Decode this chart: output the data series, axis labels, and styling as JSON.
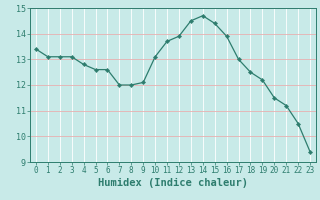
{
  "x": [
    0,
    1,
    2,
    3,
    4,
    5,
    6,
    7,
    8,
    9,
    10,
    11,
    12,
    13,
    14,
    15,
    16,
    17,
    18,
    19,
    20,
    21,
    22,
    23
  ],
  "y": [
    13.4,
    13.1,
    13.1,
    13.1,
    12.8,
    12.6,
    12.6,
    12.0,
    12.0,
    12.1,
    13.1,
    13.7,
    13.9,
    14.5,
    14.7,
    14.4,
    13.9,
    13.0,
    12.5,
    12.2,
    11.5,
    11.2,
    10.5,
    9.4
  ],
  "line_color": "#2e7d6e",
  "marker": "D",
  "marker_size": 2.2,
  "bg_color": "#c8eae8",
  "grid_color": "#ffffff",
  "grid_red_color": "#f0a0a0",
  "xlabel": "Humidex (Indice chaleur)",
  "xlabel_fontsize": 7.5,
  "tick_color": "#2e7d6e",
  "tick_fontsize": 5.5,
  "ytick_fontsize": 6.0,
  "ylim": [
    9,
    15
  ],
  "yticks": [
    9,
    10,
    11,
    12,
    13,
    14,
    15
  ],
  "xlim": [
    -0.5,
    23.5
  ],
  "xticks": [
    0,
    1,
    2,
    3,
    4,
    5,
    6,
    7,
    8,
    9,
    10,
    11,
    12,
    13,
    14,
    15,
    16,
    17,
    18,
    19,
    20,
    21,
    22,
    23
  ]
}
